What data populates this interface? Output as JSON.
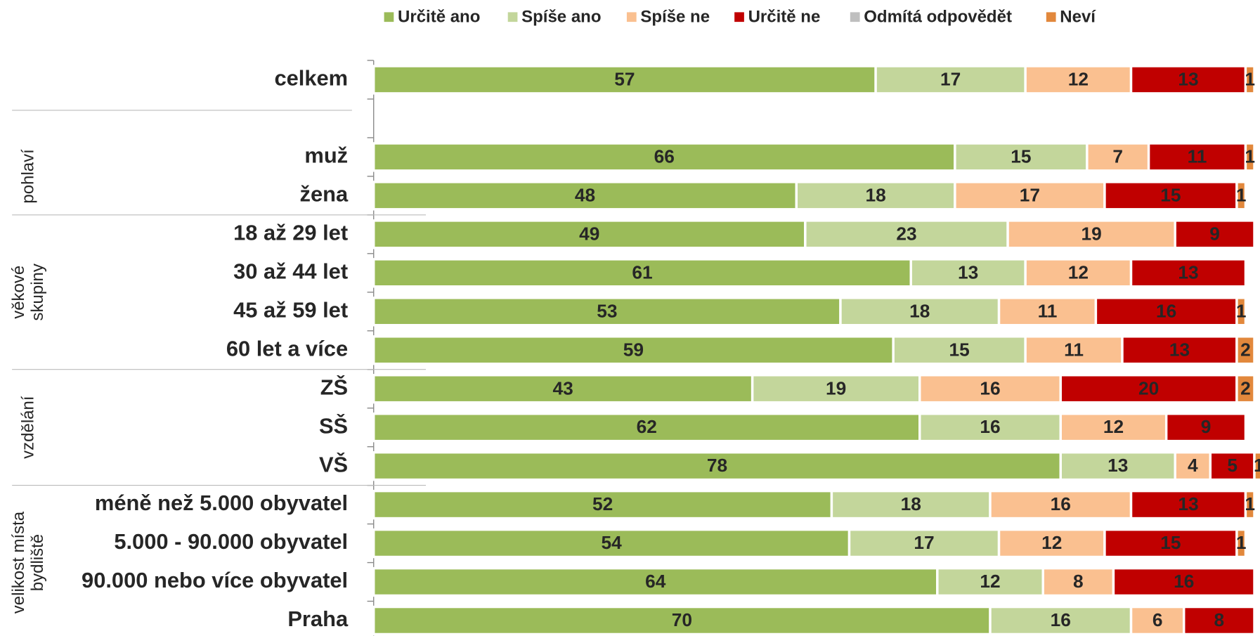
{
  "chart_data": {
    "type": "stacked-bar-horizontal",
    "categories": [
      "celkem",
      null,
      "muž",
      "žena",
      "18 až 29 let",
      "30 až 44 let",
      "45 až 59 let",
      "60 let a více",
      "ZŠ",
      "SŠ",
      "VŠ",
      "méně než 5.000 obyvatel",
      "5.000 - 90.000 obyvatel",
      "90.000 nebo více obyvatel",
      "Praha"
    ],
    "groups": [
      {
        "label": [
          "pohlaví"
        ]
      },
      {
        "label": [
          "věkové",
          "skupiny"
        ]
      },
      {
        "label": [
          "vzdělání"
        ]
      },
      {
        "label": [
          "velikost místa",
          "bydliště"
        ]
      }
    ],
    "xlim": [
      0,
      100
    ],
    "legend": "top",
    "series": [
      {
        "name": "Určitě ano",
        "color": "#9bbb59",
        "values": [
          57,
          null,
          66,
          48,
          49,
          61,
          53,
          59,
          43,
          62,
          78,
          52,
          54,
          64,
          70
        ]
      },
      {
        "name": "Spíše ano",
        "color": "#c3d69b",
        "values": [
          17,
          null,
          15,
          18,
          23,
          13,
          18,
          15,
          19,
          16,
          13,
          18,
          17,
          12,
          16
        ]
      },
      {
        "name": "Spíše ne",
        "color": "#fac090",
        "values": [
          12,
          null,
          7,
          17,
          19,
          12,
          11,
          11,
          16,
          12,
          4,
          16,
          12,
          8,
          6
        ]
      },
      {
        "name": "Určitě ne",
        "color": "#c00000",
        "values": [
          13,
          null,
          11,
          15,
          9,
          13,
          16,
          13,
          20,
          9,
          5,
          13,
          15,
          16,
          8
        ]
      },
      {
        "name": "Odmítá odpovědět",
        "color": "#bfbfbf",
        "values": [
          0,
          null,
          0,
          0,
          0,
          0,
          0,
          0,
          0,
          0,
          0,
          0,
          0,
          0,
          0
        ]
      },
      {
        "name": "Neví",
        "color": "#e2883c",
        "values": [
          1,
          null,
          1,
          1,
          0,
          0,
          1,
          2,
          2,
          0,
          1,
          1,
          1,
          0,
          0
        ]
      }
    ]
  }
}
